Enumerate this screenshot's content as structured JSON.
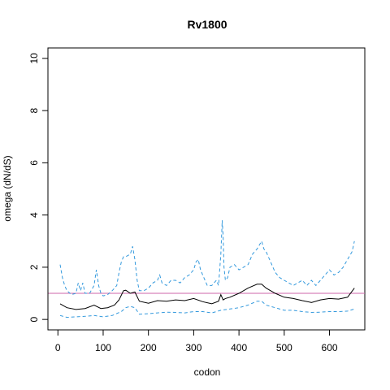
{
  "chart_data": {
    "type": "line",
    "title": "Rv1800",
    "xlabel": "codon",
    "ylabel": "omega (dN/dS)",
    "xlim": [
      -22,
      678
    ],
    "ylim": [
      -0.4,
      10.4
    ],
    "x_ticks": [
      0,
      100,
      200,
      300,
      400,
      500,
      600
    ],
    "y_ticks": [
      0,
      2,
      4,
      6,
      8,
      10
    ],
    "grid": false,
    "reference_line": {
      "y": 1,
      "color": "#cc66aa"
    },
    "series": [
      {
        "role": "estimate",
        "color": "#000000",
        "style": "solid",
        "x": [
          5,
          20,
          40,
          60,
          80,
          95,
          110,
          125,
          135,
          145,
          150,
          160,
          170,
          180,
          200,
          220,
          240,
          260,
          280,
          300,
          320,
          340,
          355,
          360,
          365,
          370,
          380,
          400,
          420,
          440,
          450,
          460,
          480,
          500,
          520,
          540,
          560,
          580,
          600,
          620,
          640,
          655
        ],
        "y": [
          0.6,
          0.45,
          0.38,
          0.42,
          0.55,
          0.42,
          0.45,
          0.55,
          0.75,
          1.1,
          1.12,
          1.0,
          1.05,
          0.7,
          0.62,
          0.72,
          0.7,
          0.75,
          0.72,
          0.8,
          0.68,
          0.6,
          0.7,
          0.95,
          0.75,
          0.8,
          0.85,
          1.0,
          1.2,
          1.35,
          1.35,
          1.2,
          1.0,
          0.85,
          0.8,
          0.72,
          0.65,
          0.75,
          0.8,
          0.78,
          0.85,
          1.2
        ]
      },
      {
        "role": "upper-bound",
        "color": "#3399dd",
        "style": "dashed",
        "x": [
          5,
          10,
          15,
          20,
          30,
          40,
          45,
          50,
          55,
          60,
          70,
          80,
          85,
          90,
          95,
          100,
          110,
          120,
          130,
          135,
          140,
          145,
          150,
          160,
          165,
          170,
          175,
          180,
          190,
          200,
          210,
          220,
          225,
          230,
          240,
          250,
          260,
          270,
          280,
          290,
          300,
          305,
          310,
          315,
          320,
          330,
          340,
          350,
          355,
          360,
          363,
          365,
          367,
          370,
          375,
          380,
          390,
          400,
          410,
          420,
          430,
          440,
          450,
          455,
          460,
          470,
          480,
          490,
          500,
          510,
          520,
          530,
          540,
          550,
          560,
          570,
          580,
          590,
          600,
          610,
          620,
          630,
          640,
          650,
          655
        ],
        "y": [
          2.1,
          1.6,
          1.3,
          1.1,
          0.95,
          1.0,
          1.4,
          1.1,
          1.4,
          1.0,
          1.0,
          1.3,
          1.9,
          1.3,
          1.0,
          0.9,
          0.95,
          1.1,
          1.3,
          1.8,
          2.2,
          2.4,
          2.4,
          2.5,
          2.8,
          2.3,
          1.5,
          1.1,
          1.1,
          1.2,
          1.4,
          1.5,
          1.7,
          1.4,
          1.3,
          1.5,
          1.5,
          1.4,
          1.6,
          1.7,
          1.9,
          2.2,
          2.3,
          1.9,
          1.7,
          1.3,
          1.3,
          1.5,
          1.3,
          2.5,
          3.8,
          3.2,
          2.0,
          1.5,
          1.6,
          2.0,
          2.1,
          1.9,
          2.0,
          2.1,
          2.5,
          2.7,
          3.0,
          2.7,
          2.6,
          2.2,
          1.8,
          1.6,
          1.5,
          1.4,
          1.3,
          1.4,
          1.5,
          1.3,
          1.5,
          1.3,
          1.5,
          1.7,
          1.9,
          1.7,
          1.8,
          2.0,
          2.3,
          2.6,
          3.0
        ]
      },
      {
        "role": "lower-bound",
        "color": "#3399dd",
        "style": "dashed",
        "x": [
          5,
          20,
          40,
          60,
          80,
          100,
          120,
          140,
          150,
          160,
          170,
          180,
          200,
          220,
          240,
          260,
          280,
          300,
          320,
          340,
          360,
          380,
          400,
          420,
          440,
          450,
          460,
          480,
          500,
          520,
          540,
          560,
          580,
          600,
          620,
          640,
          655
        ],
        "y": [
          0.15,
          0.08,
          0.1,
          0.12,
          0.15,
          0.1,
          0.15,
          0.3,
          0.45,
          0.5,
          0.45,
          0.2,
          0.22,
          0.25,
          0.28,
          0.27,
          0.25,
          0.3,
          0.3,
          0.25,
          0.35,
          0.4,
          0.45,
          0.55,
          0.7,
          0.7,
          0.55,
          0.45,
          0.35,
          0.35,
          0.3,
          0.27,
          0.28,
          0.3,
          0.3,
          0.32,
          0.4
        ]
      }
    ]
  }
}
